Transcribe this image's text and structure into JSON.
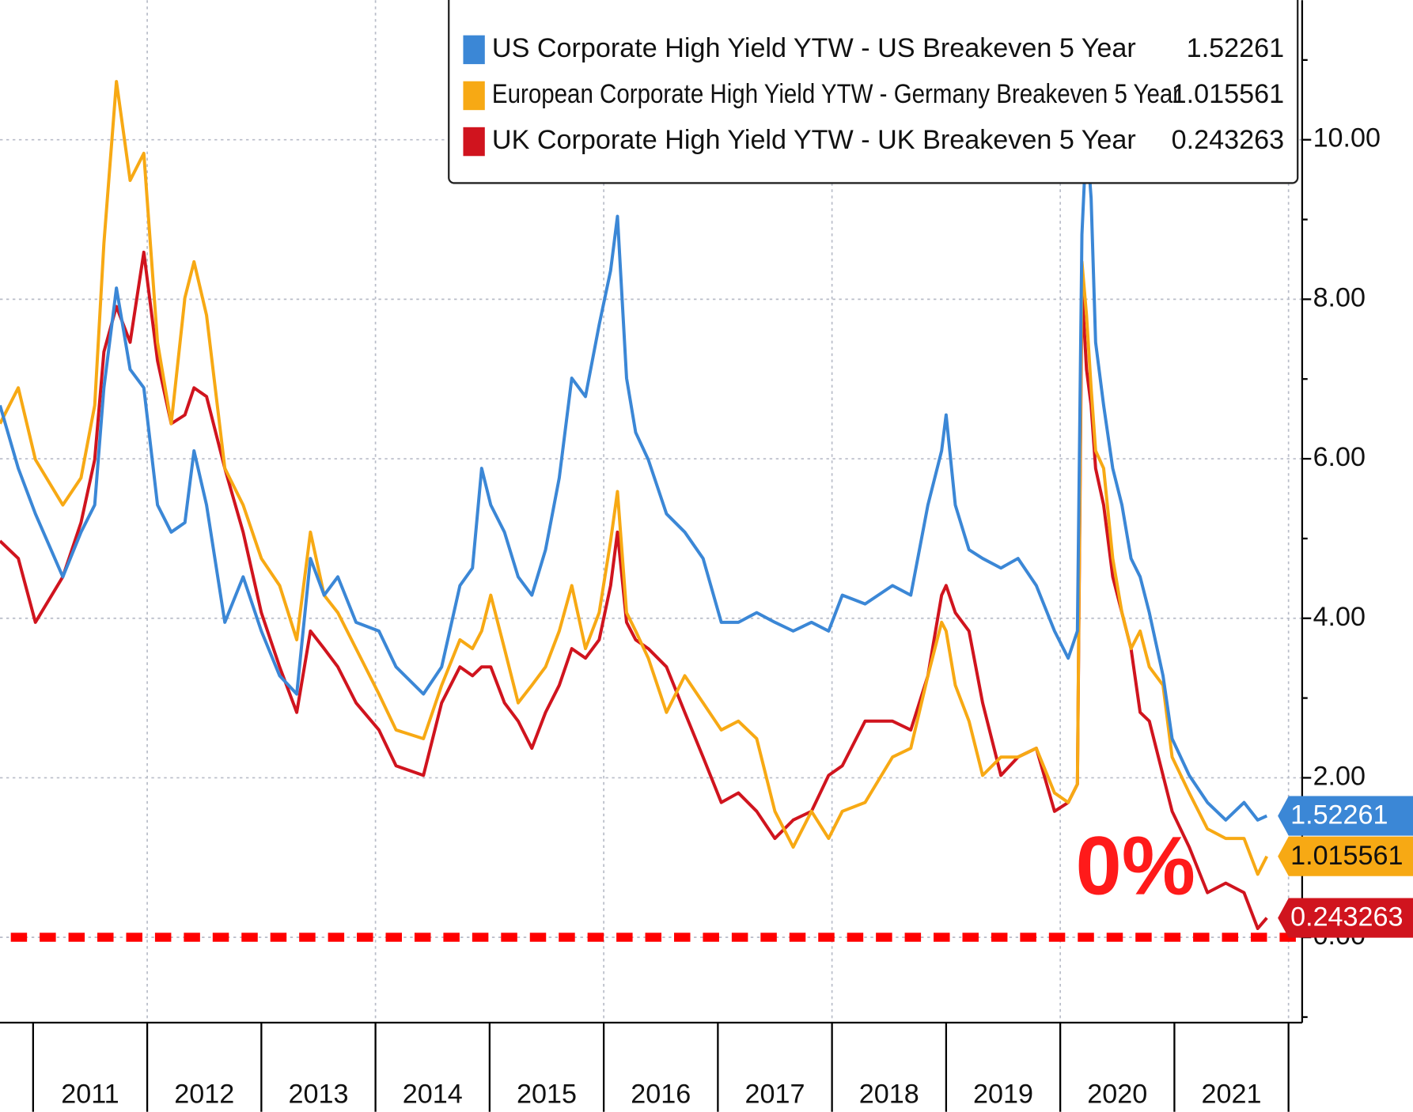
{
  "chart_data": {
    "type": "line",
    "xlim": [
      2010.71,
      2022.08
    ],
    "ylim": [
      -1.07,
      11.75
    ],
    "xticks": [
      {
        "value": 2011.5,
        "label": "2011"
      },
      {
        "value": 2012.5,
        "label": "2012"
      },
      {
        "value": 2013.5,
        "label": "2013"
      },
      {
        "value": 2014.5,
        "label": "2014"
      },
      {
        "value": 2015.5,
        "label": "2015"
      },
      {
        "value": 2016.5,
        "label": "2016"
      },
      {
        "value": 2017.5,
        "label": "2017"
      },
      {
        "value": 2018.5,
        "label": "2018"
      },
      {
        "value": 2019.5,
        "label": "2019"
      },
      {
        "value": 2020.5,
        "label": "2020"
      },
      {
        "value": 2021.5,
        "label": "2021"
      }
    ],
    "yticks": [
      {
        "value": 0,
        "label": "0.00"
      },
      {
        "value": 2,
        "label": "2.00"
      },
      {
        "value": 4,
        "label": "4.00"
      },
      {
        "value": 6,
        "label": "6.00"
      },
      {
        "value": 8,
        "label": "8.00"
      },
      {
        "value": 10,
        "label": "10.00"
      }
    ],
    "yticks_minor": [
      -1,
      1,
      3,
      5,
      7,
      9,
      11
    ],
    "grid": true,
    "legend": "top",
    "reference_line": {
      "value": 0,
      "color": "#ff0000"
    },
    "annotation": "0%",
    "x": [
      2010.71,
      2010.87,
      2011.02,
      2011.26,
      2011.42,
      2011.54,
      2011.62,
      2011.73,
      2011.85,
      2011.97,
      2012.09,
      2012.21,
      2012.33,
      2012.41,
      2012.52,
      2012.68,
      2012.84,
      2013.0,
      2013.16,
      2013.31,
      2013.43,
      2013.55,
      2013.67,
      2013.83,
      2014.03,
      2014.18,
      2014.42,
      2014.58,
      2014.74,
      2014.85,
      2014.93,
      2015.01,
      2015.13,
      2015.25,
      2015.37,
      2015.49,
      2015.61,
      2015.72,
      2015.84,
      2015.96,
      2016.06,
      2016.12,
      2016.2,
      2016.28,
      2016.39,
      2016.55,
      2016.71,
      2016.87,
      2017.03,
      2017.18,
      2017.34,
      2017.5,
      2017.66,
      2017.82,
      2017.97,
      2018.09,
      2018.29,
      2018.53,
      2018.69,
      2018.84,
      2018.96,
      2019.0,
      2019.08,
      2019.2,
      2019.32,
      2019.48,
      2019.63,
      2019.79,
      2019.95,
      2020.07,
      2020.15,
      2020.19,
      2020.23,
      2020.27,
      2020.31,
      2020.38,
      2020.46,
      2020.54,
      2020.62,
      2020.7,
      2020.78,
      2020.9,
      2020.98,
      2021.13,
      2021.29,
      2021.45,
      2021.61,
      2021.73,
      2021.81
    ],
    "series": [
      {
        "name": "US Corporate High Yield YTW - US Breakeven 5 Year",
        "color": "#3b87d6",
        "text_color": "#ffffff",
        "values": [
          6.67,
          5.88,
          5.31,
          4.52,
          5.08,
          5.42,
          6.89,
          8.14,
          7.12,
          6.89,
          5.42,
          5.08,
          5.2,
          6.1,
          5.42,
          3.95,
          4.52,
          3.84,
          3.28,
          3.05,
          4.75,
          4.29,
          4.52,
          3.95,
          3.84,
          3.39,
          3.05,
          3.39,
          4.41,
          4.63,
          5.88,
          5.42,
          5.08,
          4.52,
          4.29,
          4.86,
          5.76,
          7.01,
          6.78,
          7.68,
          8.36,
          9.04,
          7.01,
          6.33,
          5.99,
          5.31,
          5.08,
          4.75,
          3.95,
          3.95,
          4.07,
          3.95,
          3.84,
          3.95,
          3.84,
          4.29,
          4.18,
          4.41,
          4.29,
          5.42,
          6.1,
          6.55,
          5.42,
          4.86,
          4.75,
          4.63,
          4.75,
          4.41,
          3.84,
          3.5,
          3.84,
          8.81,
          10.06,
          9.27,
          7.46,
          6.67,
          5.88,
          5.42,
          4.75,
          4.52,
          4.07,
          3.28,
          2.49,
          2.03,
          1.69,
          1.47,
          1.69,
          1.47,
          1.52261
        ]
      },
      {
        "name": "European Corporate High Yield YTW - Germany Breakeven 5 Year",
        "color": "#f7a914",
        "text_color": "#111111",
        "values": [
          6.44,
          6.89,
          5.99,
          5.42,
          5.76,
          6.67,
          8.7,
          10.73,
          9.49,
          9.83,
          7.46,
          6.44,
          8.02,
          8.47,
          7.8,
          5.88,
          5.42,
          4.75,
          4.41,
          3.73,
          5.08,
          4.29,
          4.07,
          3.62,
          3.05,
          2.6,
          2.49,
          3.16,
          3.73,
          3.62,
          3.84,
          4.29,
          3.62,
          2.94,
          3.16,
          3.39,
          3.84,
          4.41,
          3.62,
          4.07,
          4.97,
          5.59,
          4.07,
          3.84,
          3.5,
          2.82,
          3.28,
          2.94,
          2.6,
          2.71,
          2.49,
          1.58,
          1.13,
          1.58,
          1.24,
          1.58,
          1.69,
          2.26,
          2.37,
          3.28,
          3.95,
          3.84,
          3.16,
          2.71,
          2.03,
          2.26,
          2.26,
          2.37,
          1.81,
          1.69,
          1.92,
          8.47,
          7.8,
          6.89,
          6.1,
          5.88,
          4.75,
          4.07,
          3.62,
          3.84,
          3.39,
          3.16,
          2.26,
          1.81,
          1.36,
          1.24,
          1.24,
          0.79,
          1.015561
        ]
      },
      {
        "name": "UK Corporate High Yield YTW - UK Breakeven 5 Year",
        "color": "#d0141e",
        "text_color": "#ffffff",
        "values": [
          4.97,
          4.75,
          3.95,
          4.52,
          5.2,
          5.99,
          7.34,
          7.91,
          7.46,
          8.59,
          7.23,
          6.44,
          6.55,
          6.89,
          6.78,
          5.88,
          5.08,
          4.07,
          3.39,
          2.82,
          3.84,
          3.62,
          3.39,
          2.94,
          2.6,
          2.15,
          2.03,
          2.94,
          3.39,
          3.28,
          3.39,
          3.39,
          2.94,
          2.71,
          2.37,
          2.82,
          3.16,
          3.62,
          3.5,
          3.73,
          4.41,
          5.08,
          3.95,
          3.73,
          3.62,
          3.39,
          2.82,
          2.26,
          1.69,
          1.81,
          1.58,
          1.24,
          1.47,
          1.58,
          2.03,
          2.15,
          2.71,
          2.71,
          2.6,
          3.28,
          4.29,
          4.41,
          4.07,
          3.84,
          2.94,
          2.03,
          2.26,
          2.37,
          1.58,
          1.69,
          1.92,
          8.14,
          7.12,
          6.67,
          5.88,
          5.42,
          4.52,
          4.07,
          3.62,
          2.82,
          2.71,
          2.03,
          1.58,
          1.13,
          0.56,
          0.68,
          0.56,
          0.11,
          0.243263
        ]
      }
    ]
  }
}
